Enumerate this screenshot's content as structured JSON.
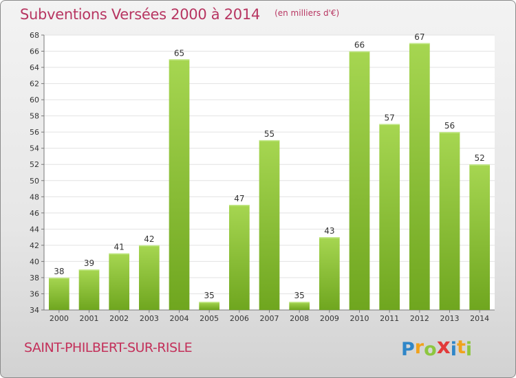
{
  "chart_data": {
    "type": "bar",
    "title": "Subventions Versées 2000 à 2014",
    "subtitle": "(en milliers d'€)",
    "categories": [
      "2000",
      "2001",
      "2002",
      "2003",
      "2004",
      "2005",
      "2006",
      "2007",
      "2008",
      "2009",
      "2010",
      "2011",
      "2012",
      "2013",
      "2014"
    ],
    "values": [
      38,
      39,
      41,
      42,
      65,
      35,
      47,
      55,
      35,
      43,
      66,
      57,
      67,
      56,
      52
    ],
    "ylim": [
      34,
      68
    ],
    "ytick_step": 2,
    "grid": true,
    "bar_color": "#8dc63f"
  },
  "commune": "SAINT-PHILBERT-SUR-RISLE",
  "logo": {
    "letters": [
      "P",
      "r",
      "o",
      "x",
      "i",
      "t",
      "i"
    ],
    "colors": [
      "#2f86c8",
      "#f0a21c",
      "#8dc63f",
      "#e23b3b",
      "#2f86c8",
      "#f0a21c",
      "#8dc63f"
    ]
  }
}
